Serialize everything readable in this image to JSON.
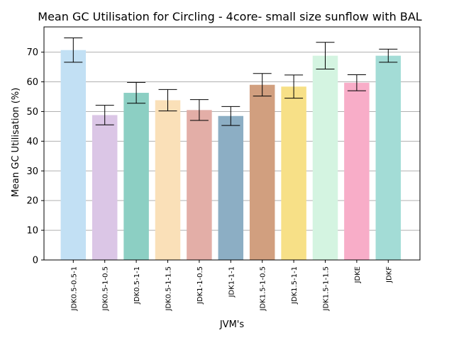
{
  "chart_data": {
    "type": "bar",
    "title": "Mean GC Utilisation for Circling - 4core- small size sunflow with BAL",
    "xlabel": "JVM's",
    "ylabel": "Mean GC Utilisation (%)",
    "ylim": [
      0,
      78.5
    ],
    "yticks": [
      0,
      10,
      20,
      30,
      40,
      50,
      60,
      70
    ],
    "grid": "y",
    "categories": [
      "JDK0.5-0.5-1",
      "JDK0.5-1-0.5",
      "JDK0.5-1-1",
      "JDK0.5-1-1.5",
      "JDK1-1-0.5",
      "JDK1-1-1",
      "JDK1.5-1-0.5",
      "JDK1.5-1-1",
      "JDK1.5-1-1.5",
      "JDKE",
      "JDKF"
    ],
    "values": [
      70.7,
      48.8,
      56.3,
      53.8,
      50.5,
      48.5,
      59.0,
      58.4,
      68.8,
      59.7,
      68.8
    ],
    "errors": [
      4.1,
      3.3,
      3.5,
      3.6,
      3.5,
      3.2,
      3.8,
      3.9,
      4.5,
      2.7,
      2.2
    ],
    "colors": [
      "#c2e0f4",
      "#dbc6e6",
      "#8ccfc3",
      "#fae0b8",
      "#e3aea7",
      "#8caec4",
      "#d19f7f",
      "#f7e087",
      "#d4f4e1",
      "#f8adc8",
      "#a3dcd6"
    ]
  }
}
